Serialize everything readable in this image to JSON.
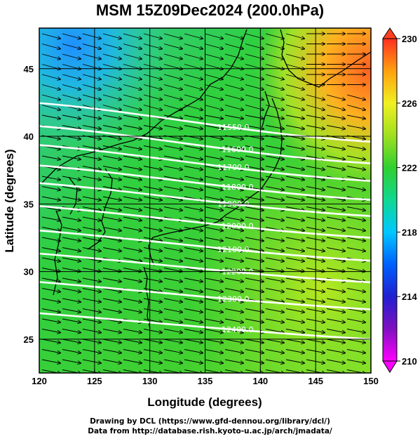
{
  "title": "MSM 15Z09Dec2024 (200.0hPa)",
  "x_axis": {
    "label": "Longitude (degrees)",
    "min": 120,
    "max": 150,
    "ticks": [
      "120",
      "125",
      "130",
      "135",
      "140",
      "145",
      "150"
    ]
  },
  "y_axis": {
    "label": "Latitude  (degrees)",
    "min": 22.5,
    "max": 48,
    "ticks": [
      "25",
      "30",
      "35",
      "40",
      "45"
    ]
  },
  "colorbar": {
    "min": 210,
    "max": 230,
    "ticks": [
      "210",
      "214",
      "218",
      "222",
      "226",
      "230"
    ],
    "colors": [
      "#ff00ff",
      "#2020c0",
      "#0050ff",
      "#00c8ff",
      "#10d890",
      "#30d030",
      "#90e020",
      "#f0f020",
      "#ffa010",
      "#ff4020"
    ]
  },
  "contours": [
    {
      "label": "11550.0",
      "lat": 39.6
    },
    {
      "label": "11600.0",
      "lat": 38.0
    },
    {
      "label": "11700.0",
      "lat": 36.7
    },
    {
      "label": "11800.0",
      "lat": 35.3
    },
    {
      "label": "11900.0",
      "lat": 34.1
    },
    {
      "label": "12000.0",
      "lat": 32.5
    },
    {
      "label": "12100.0",
      "lat": 30.8
    },
    {
      "label": "12200.0",
      "lat": 29.2
    },
    {
      "label": "12300.0",
      "lat": 27.2
    },
    {
      "label": "12400.0",
      "lat": 25.0
    }
  ],
  "credits": {
    "line1": "Drawing by DCL (https://www.gfd-dennou.org/library/dcl/)",
    "line2": "Data from http://database.rish.kyoto-u.ac.jp/arch/jmadata/"
  }
}
